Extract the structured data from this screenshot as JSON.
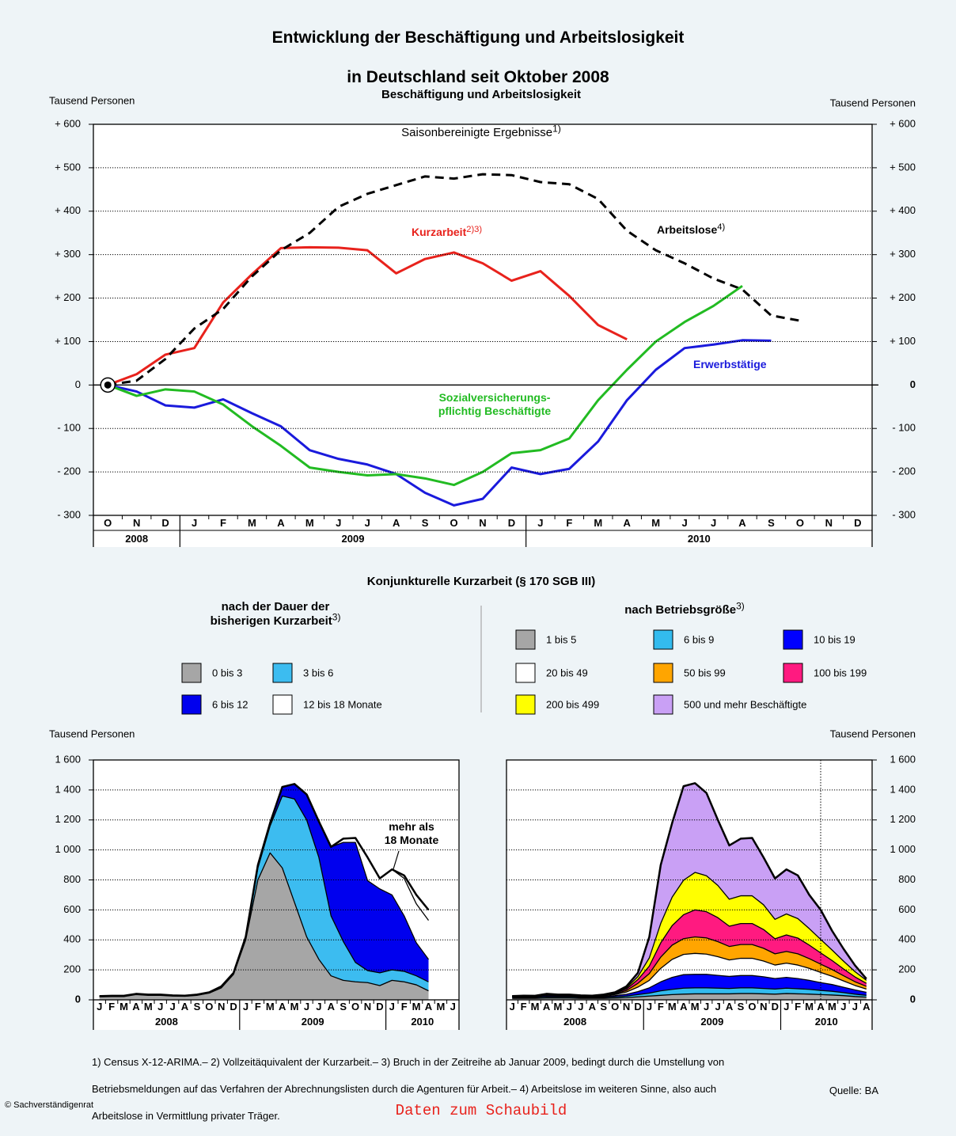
{
  "title": [
    "Entwicklung der Beschäftigung und Arbeitslosigkeit",
    "in Deutschland seit Oktober 2008"
  ],
  "section_title": "Konjunkturelle Kurzarbeit (§ 170 SGB III)",
  "footnotes": [
    "1) Census X-12-ARIMA.– 2) Vollzeitäquivalent der Kurzarbeit.– 3) Bruch in der Zeitreihe ab Januar 2009, bedingt durch die Umstellung von",
    "Betriebsmeldungen auf das Verfahren der Abrechnungslisten durch die Agenturen für Arbeit.– 4) Arbeitslose im weiteren Sinne, also auch",
    "Arbeitslose in Vermittlung privater Träger."
  ],
  "source": "Quelle: BA",
  "copyright": "© Sachverständigenrat",
  "data_link": "Daten zum Schaubild",
  "chart_data": [
    {
      "type": "line",
      "title": "Beschäftigung und Arbeitslosigkeit",
      "subtitle": "Saisonbereinigte Ergebnisse",
      "subtitle_note": "1)",
      "ylabel": "Tausend Personen",
      "category_groups": [
        {
          "label": "2008",
          "categories": [
            "O",
            "N",
            "D"
          ]
        },
        {
          "label": "2009",
          "categories": [
            "J",
            "F",
            "M",
            "A",
            "M",
            "J",
            "J",
            "A",
            "S",
            "O",
            "N",
            "D"
          ]
        },
        {
          "label": "2010",
          "categories": [
            "J",
            "F",
            "M",
            "A",
            "M",
            "J",
            "J",
            "A",
            "S",
            "O",
            "N",
            "D"
          ]
        }
      ],
      "ylim": [
        -300,
        600
      ],
      "yticks": [
        {
          "value": 600,
          "label": "+ 600"
        },
        {
          "value": 500,
          "label": "+ 500"
        },
        {
          "value": 400,
          "label": "+ 400"
        },
        {
          "value": 300,
          "label": "+ 300"
        },
        {
          "value": 200,
          "label": "+ 200"
        },
        {
          "value": 100,
          "label": "+ 100"
        },
        0,
        {
          "value": -100,
          "label": "- 100"
        },
        {
          "value": -200,
          "label": "- 200"
        },
        {
          "value": -300,
          "label": "- 300"
        }
      ],
      "grid": true,
      "series": [
        {
          "name": "Kurzarbeit",
          "note": "2)3)",
          "color": "#e8221c",
          "values": [
            0,
            25,
            70,
            85,
            190,
            255,
            315,
            317,
            316,
            310,
            257,
            290,
            305,
            280,
            240,
            262,
            205,
            138,
            105,
            null,
            null,
            null,
            null,
            null,
            null,
            null,
            null
          ]
        },
        {
          "name": "Arbeitslose",
          "note": "4)",
          "color": "#000000",
          "line_style": "dashed",
          "values": [
            0,
            10,
            60,
            130,
            175,
            250,
            310,
            350,
            410,
            440,
            460,
            480,
            475,
            485,
            483,
            467,
            462,
            428,
            355,
            310,
            280,
            245,
            220,
            160,
            148,
            null,
            null
          ]
        },
        {
          "name": "Erwerbstätige",
          "color": "#1a1adc",
          "values": [
            0,
            -15,
            -47,
            -52,
            -33,
            -65,
            -95,
            -150,
            -170,
            -183,
            -205,
            -248,
            -277,
            -262,
            -190,
            -205,
            -193,
            -130,
            -35,
            35,
            85,
            93,
            103,
            102,
            null,
            null,
            null
          ]
        },
        {
          "name": "Sozialversicherungs-\npflichtig Beschäftigte",
          "color": "#22bb22",
          "values": [
            0,
            -25,
            -10,
            -15,
            -45,
            -95,
            -140,
            -190,
            -200,
            -208,
            -205,
            -215,
            -230,
            -200,
            -157,
            -150,
            -123,
            -35,
            35,
            100,
            145,
            182,
            228,
            null,
            null,
            null,
            null
          ]
        }
      ]
    },
    {
      "type": "stacked_area",
      "legend_title": "nach der Dauer der\nbisherigen Kurzarbeit",
      "legend_note": "3)",
      "ylabel": "Tausend Personen",
      "category_groups": [
        {
          "label": "2008",
          "categories": [
            "J",
            "F",
            "M",
            "A",
            "M",
            "J",
            "J",
            "A",
            "S",
            "O",
            "N",
            "D"
          ]
        },
        {
          "label": "2009",
          "categories": [
            "J",
            "F",
            "M",
            "A",
            "M",
            "J",
            "J",
            "A",
            "S",
            "O",
            "N",
            "D"
          ]
        },
        {
          "label": "2010",
          "categories": [
            "J",
            "F",
            "M",
            "A",
            "M",
            "J"
          ]
        }
      ],
      "ylim": [
        0,
        1600
      ],
      "yticks": [
        0,
        200,
        400,
        600,
        800,
        {
          "value": 1000,
          "label": "1 000"
        },
        {
          "value": 1200,
          "label": "1 200"
        },
        {
          "value": 1400,
          "label": "1 400"
        },
        {
          "value": 1600,
          "label": "1 600"
        }
      ],
      "grid": true,
      "series": [
        {
          "name": "0 bis 3",
          "color": "#a6a6a6",
          "values": [
            20,
            22,
            22,
            35,
            30,
            30,
            25,
            24,
            30,
            45,
            80,
            170,
            400,
            800,
            980,
            880,
            650,
            420,
            270,
            160,
            130,
            120,
            115,
            95,
            130,
            120,
            100,
            60,
            null,
            null
          ]
        },
        {
          "name": "3 bis 6",
          "color": "#3cbcf0",
          "values": [
            3,
            3,
            3,
            3,
            3,
            3,
            3,
            2,
            3,
            3,
            5,
            8,
            15,
            80,
            180,
            480,
            690,
            780,
            680,
            400,
            260,
            130,
            80,
            85,
            70,
            70,
            60,
            60,
            null,
            null
          ]
        },
        {
          "name": "6 bis 12",
          "color": "#0000ee",
          "values": [
            2,
            2,
            2,
            2,
            2,
            2,
            2,
            2,
            2,
            2,
            5,
            2,
            5,
            20,
            20,
            60,
            100,
            170,
            240,
            460,
            660,
            800,
            600,
            560,
            500,
            370,
            220,
            150,
            null,
            null
          ]
        },
        {
          "name": "12 bis 18 Monate",
          "color": "#ffffff",
          "values": [
            0,
            0,
            0,
            0,
            0,
            0,
            0,
            0,
            0,
            0,
            0,
            0,
            0,
            0,
            0,
            0,
            0,
            0,
            0,
            0,
            25,
            30,
            155,
            70,
            170,
            250,
            260,
            260,
            null,
            null
          ]
        },
        {
          "name": "mehr als\n18 Monate",
          "color": "#ffffff",
          "in_legend": false,
          "values": [
            0,
            0,
            0,
            0,
            0,
            0,
            0,
            0,
            0,
            0,
            0,
            0,
            0,
            0,
            0,
            0,
            0,
            0,
            0,
            0,
            0,
            0,
            0,
            0,
            0,
            20,
            60,
            70,
            null,
            null
          ]
        }
      ]
    },
    {
      "type": "stacked_area",
      "legend_title": "nach Betriebsgröße",
      "legend_note": "3)",
      "ylabel": "Tausend Personen",
      "category_groups": [
        {
          "label": "2008",
          "categories": [
            "J",
            "F",
            "M",
            "A",
            "M",
            "J",
            "J",
            "A",
            "S",
            "O",
            "N",
            "D"
          ]
        },
        {
          "label": "2009",
          "categories": [
            "J",
            "F",
            "M",
            "A",
            "M",
            "J",
            "J",
            "A",
            "S",
            "O",
            "N",
            "D"
          ]
        },
        {
          "label": "2010",
          "categories": [
            "J",
            "F",
            "M",
            "A",
            "M",
            "J",
            "J",
            "A"
          ]
        }
      ],
      "ylim": [
        0,
        1600
      ],
      "yticks": [
        0,
        200,
        400,
        600,
        800,
        {
          "value": 1000,
          "label": "1 000"
        },
        {
          "value": 1200,
          "label": "1 200"
        },
        {
          "value": 1400,
          "label": "1 400"
        },
        {
          "value": 1600,
          "label": "1 600"
        }
      ],
      "grid": true,
      "series": [
        {
          "name": "1 bis 5",
          "color": "#a6a6a6",
          "values": [
            10,
            10,
            10,
            12,
            12,
            12,
            10,
            10,
            10,
            12,
            15,
            20,
            25,
            30,
            35,
            38,
            40,
            40,
            40,
            40,
            42,
            42,
            40,
            38,
            42,
            40,
            38,
            35,
            32,
            28,
            22,
            18
          ]
        },
        {
          "name": "6 bis 9",
          "color": "#33bbee",
          "values": [
            5,
            6,
            6,
            8,
            7,
            7,
            6,
            6,
            6,
            8,
            10,
            15,
            20,
            30,
            35,
            40,
            40,
            40,
            38,
            36,
            38,
            38,
            36,
            34,
            36,
            34,
            32,
            28,
            25,
            20,
            16,
            12
          ]
        },
        {
          "name": "10 bis 19",
          "color": "#0000ff",
          "values": [
            5,
            5,
            5,
            8,
            6,
            6,
            5,
            5,
            6,
            8,
            12,
            20,
            35,
            60,
            80,
            90,
            90,
            90,
            85,
            80,
            82,
            82,
            78,
            70,
            72,
            68,
            60,
            52,
            45,
            36,
            28,
            20
          ]
        },
        {
          "name": "20 bis 49",
          "color": "#ffffff",
          "values": [
            3,
            4,
            3,
            6,
            5,
            5,
            4,
            3,
            5,
            8,
            15,
            30,
            50,
            90,
            120,
            135,
            140,
            135,
            125,
            110,
            115,
            115,
            105,
            90,
            95,
            90,
            80,
            68,
            55,
            42,
            30,
            22
          ]
        },
        {
          "name": "50 bis 99",
          "color": "#ffa500",
          "values": [
            1,
            1,
            1,
            2,
            2,
            2,
            2,
            2,
            3,
            5,
            10,
            25,
            45,
            75,
            95,
            105,
            110,
            108,
            100,
            90,
            92,
            92,
            85,
            75,
            78,
            75,
            65,
            55,
            45,
            35,
            25,
            18
          ]
        },
        {
          "name": "100 bis 199",
          "color": "#ff1a80",
          "values": [
            1,
            1,
            1,
            2,
            2,
            2,
            2,
            1,
            3,
            5,
            10,
            25,
            50,
            95,
            130,
            160,
            180,
            175,
            160,
            135,
            140,
            140,
            125,
            100,
            110,
            105,
            90,
            75,
            60,
            45,
            32,
            20
          ]
        },
        {
          "name": "200 bis 499",
          "color": "#ffff00",
          "values": [
            0,
            0,
            0,
            1,
            1,
            1,
            1,
            1,
            1,
            2,
            8,
            20,
            55,
            130,
            190,
            230,
            250,
            240,
            215,
            180,
            185,
            185,
            165,
            130,
            140,
            130,
            110,
            90,
            70,
            52,
            35,
            20
          ]
        },
        {
          "name": "500 und mehr Beschäftigte",
          "color": "#c9a0f5",
          "values": [
            0,
            1,
            1,
            1,
            0,
            0,
            0,
            0,
            1,
            2,
            10,
            25,
            140,
            390,
            495,
            627,
            595,
            552,
            437,
            359,
            381,
            386,
            316,
            273,
            297,
            288,
            225,
            197,
            128,
            82,
            42,
            10
          ]
        }
      ]
    }
  ]
}
